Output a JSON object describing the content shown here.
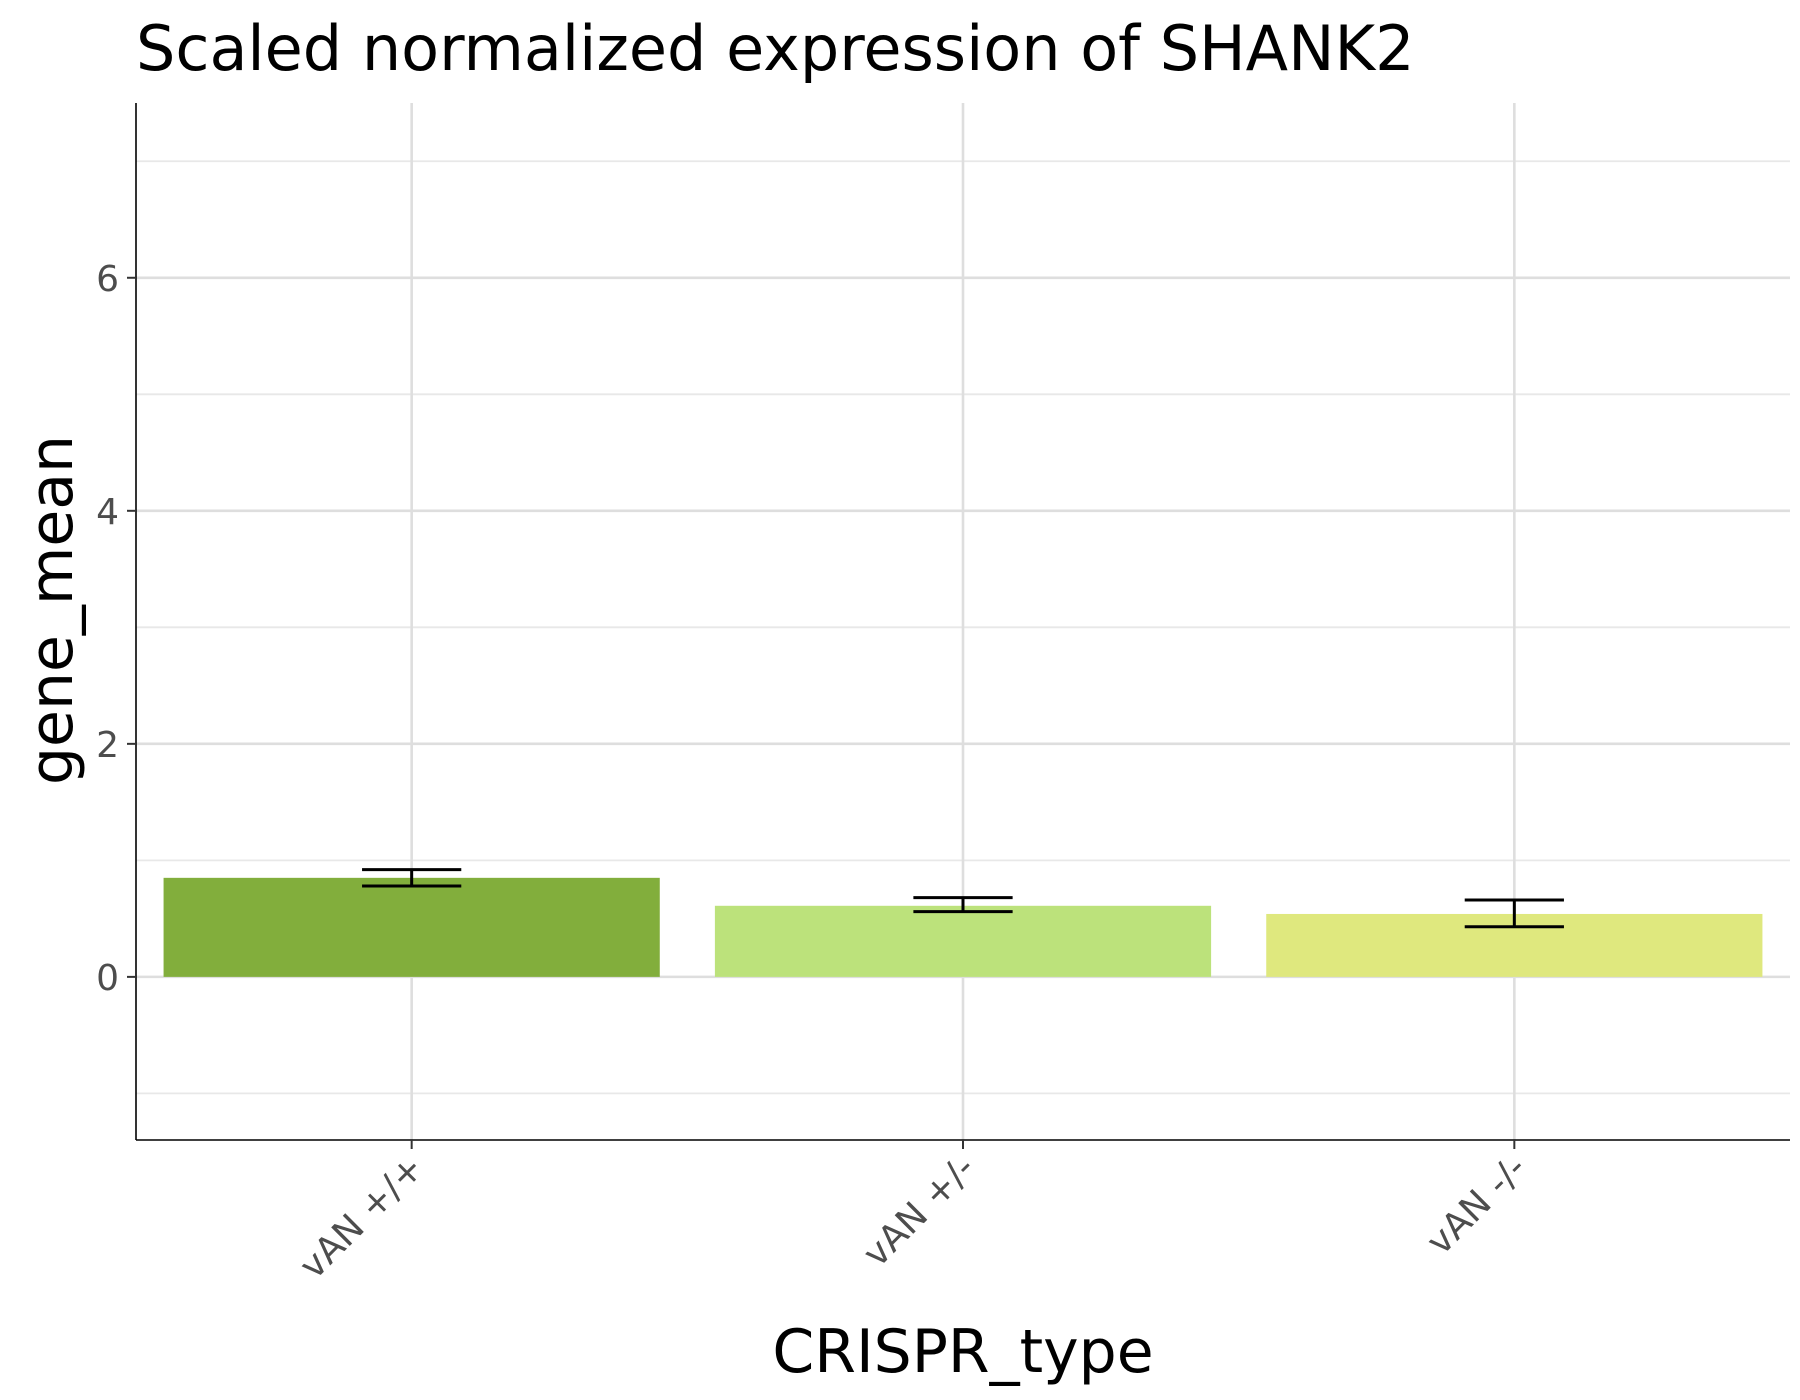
{
  "chart_data": {
    "type": "bar",
    "title": "Scaled normalized expression of SHANK2",
    "xlabel": "CRISPR_type",
    "ylabel": "gene_mean",
    "categories": [
      "vAN +/+",
      "vAN +/-",
      "vAN -/-"
    ],
    "values": [
      0.85,
      0.61,
      0.54
    ],
    "error_low": [
      0.78,
      0.56,
      0.43
    ],
    "error_high": [
      0.92,
      0.68,
      0.66
    ],
    "colors": [
      "#82ae3c",
      "#bce27b",
      "#dfe87e"
    ],
    "ylim": [
      -1.4,
      7.5
    ],
    "yticks": [
      0,
      2,
      4,
      6
    ],
    "grid": true,
    "legend": "none"
  }
}
